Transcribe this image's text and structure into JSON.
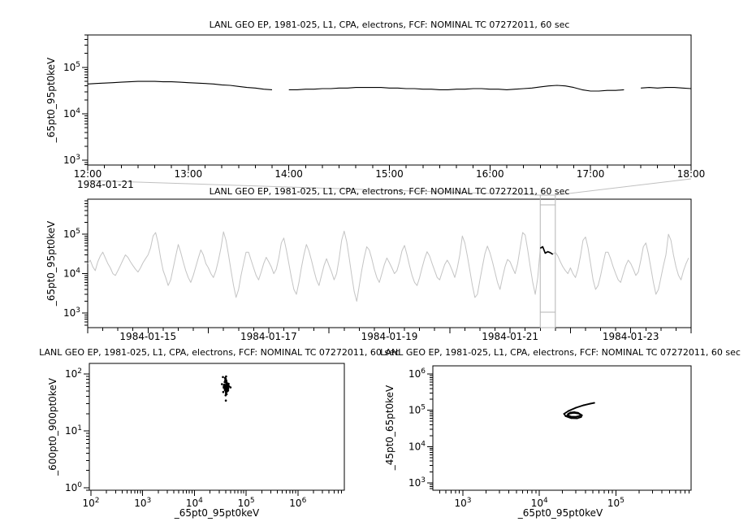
{
  "colors": {
    "foreground": "#000000",
    "background": "#ffffff",
    "context_series": "#c4c4c4",
    "selection_box": "#b4b4b4",
    "connector": "#c0c0c0"
  },
  "chart_data": [
    {
      "id": "zoom-detail",
      "type": "line",
      "title": "LANL GEO EP, 1981-025, L1, CPA, electrons, FCF: NOMINAL TC 07272011, 60 sec",
      "ylabel": "_65pt0_95pt0keV",
      "xlabel": "",
      "x_axis": {
        "type": "time",
        "min": 12,
        "max": 18,
        "major_step": 1,
        "minor_step": 0.166667,
        "tick_labels": [
          {
            "value": 12,
            "label": "12:00"
          },
          {
            "value": 13,
            "label": "13:00"
          },
          {
            "value": 14,
            "label": "14:00"
          },
          {
            "value": 15,
            "label": "15:00"
          },
          {
            "value": 16,
            "label": "16:00"
          },
          {
            "value": 17,
            "label": "17:00"
          },
          {
            "value": 18,
            "label": "18:00"
          }
        ],
        "context_label": "1984-01-21"
      },
      "y_axis": {
        "type": "log",
        "min": 790,
        "max": 500000,
        "label_exponents": [
          3,
          4,
          5
        ]
      },
      "series": [
        {
          "name": "_65pt0_95pt0keV",
          "color": "#000000",
          "line_width": 1.1,
          "t0": 12,
          "dt": 0.0833333,
          "value_scale": 1000,
          "values": [
            44,
            45,
            46,
            47,
            48,
            49,
            50,
            50,
            50,
            49,
            49,
            48,
            47,
            46,
            45,
            44,
            42,
            41,
            39,
            37,
            36,
            34,
            33,
            null,
            33,
            33,
            34,
            34,
            35,
            35,
            36,
            36,
            37,
            37,
            37,
            37,
            36,
            36,
            35,
            35,
            34,
            34,
            33,
            33,
            34,
            34,
            35,
            35,
            34,
            34,
            33,
            34,
            35,
            36,
            38,
            40,
            41,
            40,
            37,
            33,
            31,
            31,
            32,
            32,
            33,
            null,
            36,
            37,
            36,
            37,
            37,
            36,
            35
          ]
        }
      ]
    },
    {
      "id": "context-overview",
      "type": "line",
      "title": "LANL GEO EP, 1981-025, L1, CPA, electrons, FCF: NOMINAL TC 07272011, 60 sec",
      "ylabel": "_65pt0_95pt0keV",
      "xlabel": "",
      "x_axis": {
        "type": "time",
        "min": 0,
        "max": 10,
        "major_step": 1,
        "minor_step": 0.25,
        "tick_labels": [
          {
            "value": 1,
            "label": "1984-01-15"
          },
          {
            "value": 3,
            "label": "1984-01-17"
          },
          {
            "value": 5,
            "label": "1984-01-19"
          },
          {
            "value": 7,
            "label": "1984-01-21"
          },
          {
            "value": 9,
            "label": "1984-01-23"
          }
        ]
      },
      "y_axis": {
        "type": "log",
        "min": 430,
        "max": 770000,
        "label_exponents": [
          3,
          4,
          5
        ]
      },
      "selection": {
        "from": 7.5,
        "to": 7.75
      },
      "series": [
        {
          "name": "_65pt0_95pt0keV",
          "color": "#c4c4c4",
          "line_width": 1,
          "t0": 0,
          "dt": 0.0416667,
          "value_scale": 1000,
          "highlight": {
            "from": 7.5,
            "to": 7.75,
            "color": "#000000",
            "line_width": 1.7
          },
          "values": [
            18,
            22,
            15,
            12,
            20,
            28,
            35,
            25,
            18,
            14,
            10,
            9,
            12,
            16,
            22,
            30,
            26,
            20,
            16,
            13,
            11,
            14,
            19,
            24,
            30,
            45,
            90,
            110,
            60,
            25,
            12,
            8,
            5,
            7,
            14,
            28,
            55,
            35,
            20,
            12,
            8,
            6,
            9,
            15,
            25,
            40,
            30,
            18,
            14,
            10,
            8,
            12,
            22,
            45,
            115,
            70,
            30,
            12,
            5,
            2.5,
            4,
            9,
            18,
            35,
            35,
            22,
            14,
            9,
            7,
            11,
            18,
            26,
            20,
            15,
            10,
            13,
            25,
            60,
            80,
            40,
            18,
            8,
            4,
            3,
            6,
            14,
            30,
            55,
            38,
            22,
            12,
            7,
            5,
            9,
            16,
            24,
            16,
            11,
            7,
            10,
            24,
            70,
            120,
            65,
            25,
            9,
            3.5,
            2,
            5,
            12,
            26,
            48,
            40,
            24,
            13,
            8,
            6,
            10,
            17,
            25,
            19,
            14,
            10,
            12,
            20,
            38,
            52,
            30,
            16,
            9,
            6,
            5,
            8,
            14,
            24,
            36,
            28,
            18,
            12,
            8,
            7,
            11,
            17,
            22,
            17,
            12,
            8,
            14,
            30,
            90,
            60,
            28,
            12,
            5,
            2.5,
            3,
            7,
            15,
            32,
            50,
            34,
            20,
            11,
            6,
            4,
            8,
            15,
            23,
            20,
            14,
            10,
            18,
            45,
            110,
            95,
            40,
            15,
            6,
            3,
            8,
            44,
            48,
            33,
            36,
            34,
            31,
            35,
            28,
            20,
            15,
            12,
            10,
            14,
            10,
            8,
            13,
            28,
            70,
            85,
            45,
            18,
            7,
            4,
            5,
            9,
            18,
            35,
            35,
            24,
            15,
            10,
            7,
            6,
            10,
            16,
            22,
            18,
            13,
            9,
            11,
            22,
            48,
            60,
            32,
            14,
            6,
            3,
            4,
            8,
            16,
            30,
            100,
            70,
            30,
            15,
            9,
            7,
            12,
            18,
            25
          ]
        }
      ]
    },
    {
      "id": "scatter-600-900",
      "type": "scatter",
      "title": "LANL GEO EP, 1981-025, L1, CPA, electrons, FCF: NOMINAL TC 07272011, 60 sec",
      "xlabel": "_65pt0_95pt0keV",
      "ylabel": "_600pt0_900pt0keV",
      "x_axis": {
        "type": "log",
        "min": 93,
        "max": 7900000,
        "label_exponents": [
          2,
          3,
          4,
          5,
          6
        ]
      },
      "y_axis": {
        "type": "log",
        "min": 0.9,
        "max": 153,
        "label_exponents": [
          0,
          1,
          2
        ]
      },
      "points": [
        [
          40000,
          62
        ],
        [
          42000,
          58
        ],
        [
          38000,
          65
        ],
        [
          45000,
          55
        ],
        [
          41000,
          70
        ],
        [
          39000,
          60
        ],
        [
          43000,
          52
        ],
        [
          37000,
          57
        ],
        [
          44000,
          66
        ],
        [
          40500,
          75
        ],
        [
          36000,
          48
        ],
        [
          47000,
          60
        ],
        [
          42500,
          63
        ],
        [
          39500,
          55
        ],
        [
          41500,
          58
        ],
        [
          38500,
          72
        ],
        [
          43500,
          61
        ],
        [
          40200,
          50
        ],
        [
          42800,
          68
        ],
        [
          37500,
          64
        ],
        [
          44500,
          59
        ],
        [
          39800,
          53
        ],
        [
          41200,
          77
        ],
        [
          38200,
          56
        ],
        [
          45500,
          62
        ],
        [
          40800,
          47
        ],
        [
          42200,
          65
        ],
        [
          36800,
          59
        ],
        [
          43800,
          54
        ],
        [
          41800,
          71
        ],
        [
          39200,
          63
        ],
        [
          44200,
          57
        ],
        [
          40400,
          82
        ],
        [
          37800,
          61
        ],
        [
          42600,
          49
        ],
        [
          45800,
          67
        ],
        [
          39600,
          58
        ],
        [
          41400,
          74
        ],
        [
          38800,
          52
        ],
        [
          43200,
          60
        ],
        [
          40600,
          55
        ],
        [
          42400,
          69
        ],
        [
          37200,
          63
        ],
        [
          44800,
          51
        ],
        [
          41600,
          66
        ],
        [
          39400,
          78
        ],
        [
          42900,
          56
        ],
        [
          38600,
          60
        ],
        [
          45200,
          64
        ],
        [
          40900,
          45
        ],
        [
          35500,
          88
        ],
        [
          41000,
          90
        ],
        [
          40000,
          42
        ],
        [
          39000,
          85
        ],
        [
          42000,
          44
        ],
        [
          50000,
          58
        ],
        [
          34000,
          66
        ],
        [
          40500,
          34
        ]
      ]
    },
    {
      "id": "scatter-45-65",
      "type": "line-scatter",
      "title": "LANL GEO EP, 1981-025, L1, CPA, electrons, FCF: NOMINAL TC 07272011, 60 sec",
      "xlabel": "_65pt0_95pt0keV",
      "ylabel": "_45pt0_65pt0keV",
      "x_axis": {
        "type": "log",
        "min": 405,
        "max": 960000,
        "label_exponents": [
          3,
          4,
          5
        ]
      },
      "y_axis": {
        "type": "log",
        "min": 630,
        "max": 1675000,
        "label_exponents": [
          3,
          4,
          5,
          6
        ]
      },
      "points": [
        [
          52000,
          160000
        ],
        [
          46000,
          152000
        ],
        [
          38000,
          138000
        ],
        [
          30000,
          118000
        ],
        [
          24000,
          96000
        ],
        [
          21000,
          80000
        ],
        [
          22000,
          69000
        ],
        [
          26000,
          61000
        ],
        [
          31000,
          60000
        ],
        [
          35000,
          65000
        ],
        [
          36000,
          73000
        ],
        [
          33000,
          81000
        ],
        [
          28000,
          85000
        ],
        [
          24500,
          81000
        ],
        [
          23500,
          73000
        ],
        [
          26000,
          67000
        ],
        [
          30000,
          66000
        ],
        [
          33500,
          70000
        ],
        [
          34500,
          77000
        ],
        [
          32000,
          85000
        ],
        [
          28500,
          89000
        ],
        [
          25500,
          87000
        ],
        [
          23800,
          80000
        ],
        [
          23000,
          72000
        ]
      ]
    }
  ]
}
